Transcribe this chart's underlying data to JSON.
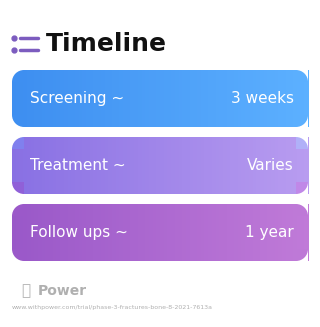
{
  "title": "Timeline",
  "title_icon_color": "#7C5CBF",
  "title_fontsize": 18,
  "background_color": "#ffffff",
  "rows": [
    {
      "label": "Screening ~",
      "value": "3 weeks",
      "color_left": "#4285F4",
      "color_right": "#5BA3FF"
    },
    {
      "label": "Treatment ~",
      "value": "Varies",
      "color_tl": "#6E7FE8",
      "color_tr": "#9BAAF5",
      "color_bl": "#A07FD8",
      "color_br": "#C09FEA"
    },
    {
      "label": "Follow ups ~",
      "value": "1 year",
      "color_left": "#A060CC",
      "color_right": "#CC88DD"
    }
  ],
  "footer_logo_text": "Power",
  "footer_url": "www.withpower.com/trial/phase-3-fractures-bone-8-2021-7613a",
  "footer_color": "#b0b0b0",
  "text_color": "#ffffff",
  "label_fontsize": 10,
  "value_fontsize": 10
}
